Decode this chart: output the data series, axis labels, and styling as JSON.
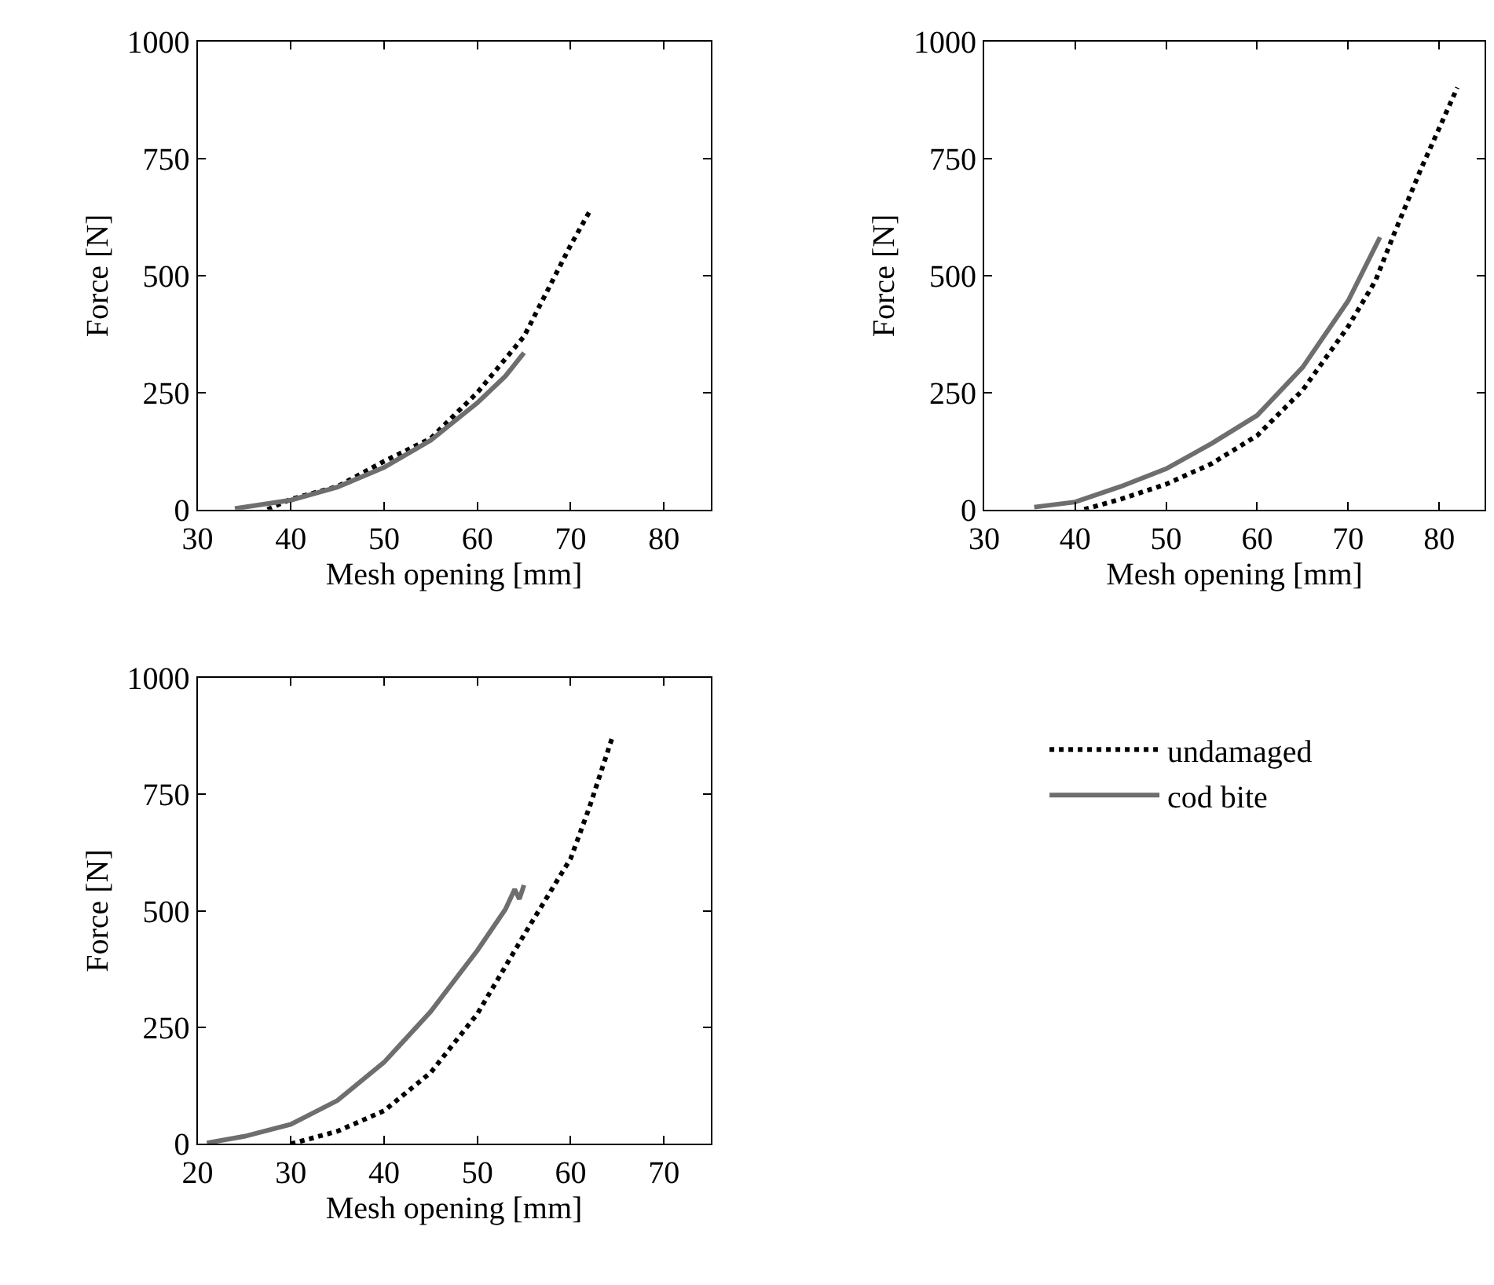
{
  "chart_data": [
    {
      "type": "line",
      "xlabel": "Mesh opening [mm]",
      "ylabel": "Force [N]",
      "xlim": [
        30,
        85
      ],
      "xticks": [
        30,
        40,
        50,
        60,
        70,
        80
      ],
      "ylim": [
        0,
        1000
      ],
      "yticks": [
        0,
        250,
        500,
        750,
        1000
      ],
      "marker": "none",
      "legend": "bottom right",
      "series": [
        {
          "name": "undamaged",
          "color": "#000000",
          "line_style": "dotted",
          "x": [
            37.5,
            40,
            45,
            50,
            55,
            60,
            65,
            70,
            72
          ],
          "values": [
            0,
            22,
            49,
            103,
            152,
            250,
            370,
            565,
            636
          ]
        },
        {
          "name": "cod bite",
          "color": "#6e6e6e",
          "line_style": "solid",
          "x": [
            34,
            40,
            45,
            50,
            55,
            60,
            63,
            65
          ],
          "values": [
            2,
            20,
            48,
            90,
            148,
            228,
            285,
            335
          ]
        }
      ]
    },
    {
      "type": "line",
      "xlabel": "Mesh opening [mm]",
      "ylabel": "Force [N]",
      "xlim": [
        30,
        85
      ],
      "xticks": [
        30,
        40,
        50,
        60,
        70,
        80
      ],
      "ylim": [
        0,
        1000
      ],
      "yticks": [
        0,
        250,
        500,
        750,
        1000
      ],
      "marker": "none",
      "series": [
        {
          "color": "#000000",
          "line_style": "dotted",
          "x": [
            41,
            45,
            50,
            55,
            60,
            65,
            70,
            73,
            75,
            78,
            80,
            82
          ],
          "values": [
            0,
            22,
            54,
            98,
            158,
            255,
            391,
            489,
            587,
            728,
            815,
            902
          ]
        },
        {
          "color": "#6e6e6e",
          "line_style": "solid",
          "x": [
            35.5,
            40,
            45,
            50,
            55,
            60,
            65,
            70,
            73.5
          ],
          "values": [
            5,
            16,
            49,
            87,
            141,
            201,
            304,
            446,
            582
          ]
        }
      ]
    },
    {
      "type": "line",
      "xlabel": "Mesh opening [mm]",
      "ylabel": "Force [N]",
      "xlim": [
        20,
        75
      ],
      "xticks": [
        20,
        30,
        40,
        50,
        60,
        70
      ],
      "ylim": [
        0,
        1000
      ],
      "yticks": [
        0,
        250,
        500,
        750,
        1000
      ],
      "marker": "none",
      "series": [
        {
          "color": "#000000",
          "line_style": "dotted",
          "x": [
            30,
            35,
            40,
            45,
            50,
            55,
            60,
            62,
            64.5
          ],
          "values": [
            0,
            27,
            71,
            153,
            279,
            448,
            612,
            721,
            874
          ]
        },
        {
          "color": "#6e6e6e",
          "line_style": "solid",
          "x": [
            21,
            25,
            30,
            35,
            40,
            45,
            50,
            53,
            54,
            54.5,
            55
          ],
          "values": [
            2,
            16,
            42,
            93,
            175,
            284,
            415,
            503,
            546,
            525,
            555
          ]
        }
      ]
    }
  ]
}
